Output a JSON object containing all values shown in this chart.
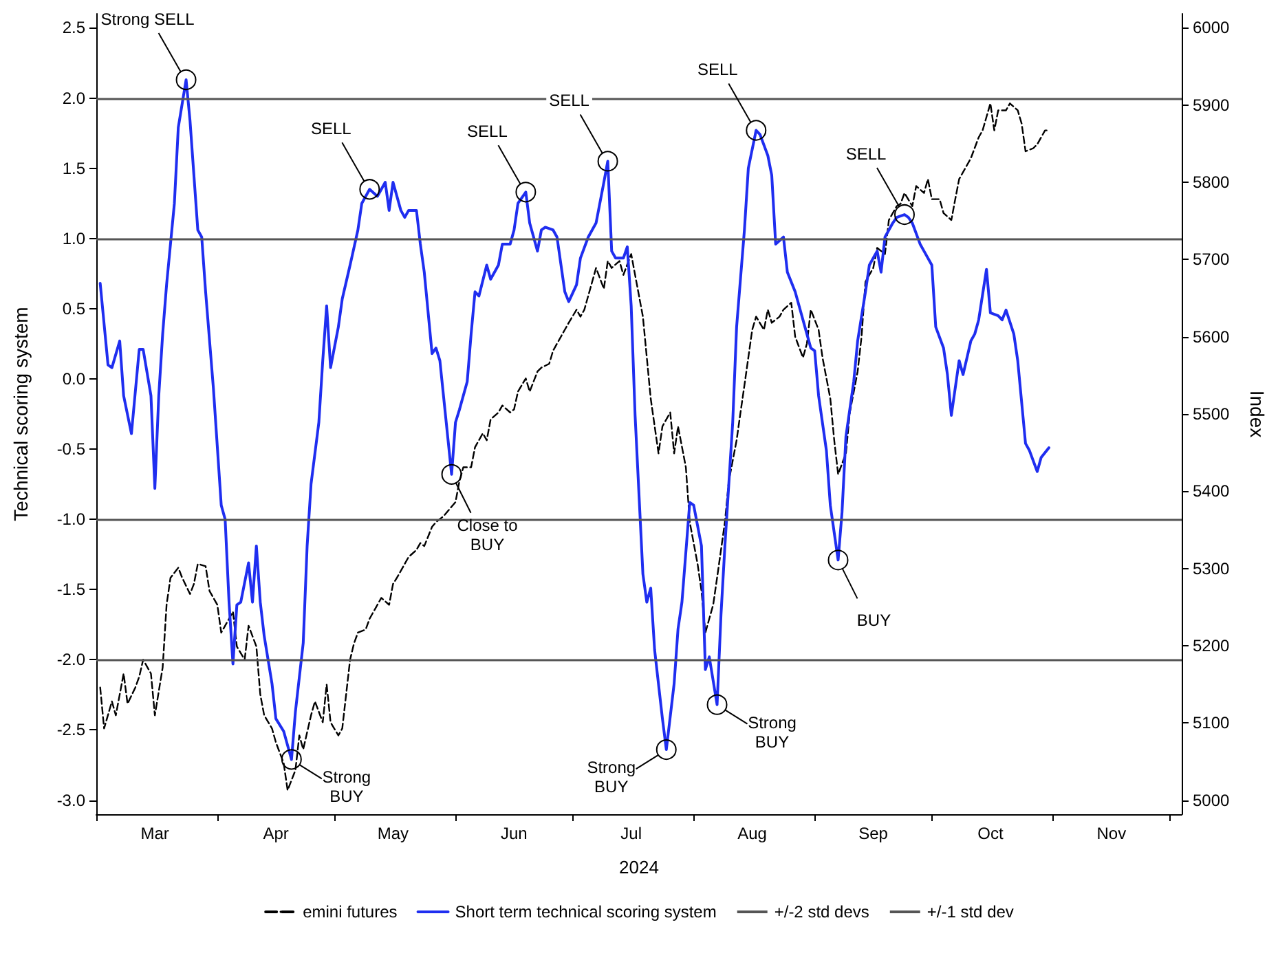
{
  "chart_data": {
    "type": "line",
    "xlabel": "2024",
    "ylabel": "Technical scoring system",
    "y2label": "Index",
    "xlim": [
      "2024-03-01",
      "2024-12-04"
    ],
    "xticks": [
      {
        "value": "2024-03-01",
        "label": null
      },
      {
        "value": "2024-04-01",
        "label": null
      },
      {
        "value": "2024-05-01",
        "label": null
      },
      {
        "value": "2024-06-01",
        "label": null
      },
      {
        "value": "2024-07-01",
        "label": null
      },
      {
        "value": "2024-08-01",
        "label": null
      },
      {
        "value": "2024-09-01",
        "label": null
      },
      {
        "value": "2024-10-01",
        "label": null
      },
      {
        "value": "2024-11-01",
        "label": null
      },
      {
        "value": "2024-12-01",
        "label": null
      },
      {
        "value": "2024-03-16",
        "label": "Mar"
      },
      {
        "value": "2024-04-16",
        "label": "Apr"
      },
      {
        "value": "2024-05-16",
        "label": "May"
      },
      {
        "value": "2024-06-16",
        "label": "Jun"
      },
      {
        "value": "2024-07-16",
        "label": "Jul"
      },
      {
        "value": "2024-08-16",
        "label": "Aug"
      },
      {
        "value": "2024-09-16",
        "label": "Sep"
      },
      {
        "value": "2024-10-16",
        "label": "Oct"
      },
      {
        "value": "2024-11-16",
        "label": "Nov"
      }
    ],
    "ylim": [
      -3.1,
      2.6
    ],
    "yticks": [
      {
        "value": -3,
        "label": "-3.0"
      },
      {
        "value": -2.5,
        "label": "-2.5"
      },
      {
        "value": -2,
        "label": "-2.0"
      },
      {
        "value": -1.5,
        "label": "-1.5"
      },
      {
        "value": -1,
        "label": "-1.0"
      },
      {
        "value": -0.5,
        "label": "-0.5"
      },
      {
        "value": 0,
        "label": "0.0"
      },
      {
        "value": 0.5,
        "label": "0.5"
      },
      {
        "value": 1,
        "label": "1.0"
      },
      {
        "value": 1.5,
        "label": "1.5"
      },
      {
        "value": 2,
        "label": "2.0"
      },
      {
        "value": 2.5,
        "label": "2.5"
      }
    ],
    "y2lim": [
      4982,
      6018
    ],
    "y2ticks": [
      5000,
      5100,
      5200,
      5300,
      5400,
      5500,
      5600,
      5700,
      5800,
      5900,
      6000
    ],
    "legend": "bottom",
    "marker": "none",
    "ref_lines": [
      {
        "axis": "y",
        "value": 2,
        "label": "+/-2 std devs",
        "color": "#555555"
      },
      {
        "axis": "y",
        "value": -2,
        "color": "#555555"
      },
      {
        "axis": "y",
        "value": 1,
        "label": "+/-1 std dev",
        "color": "#555555"
      },
      {
        "axis": "y",
        "value": -1,
        "color": "#555555"
      }
    ],
    "annotations": [
      {
        "text": "Strong SELL",
        "x": "2024-03-24",
        "y": 2.13
      },
      {
        "text": "Strong\nBUY",
        "x": "2024-04-20",
        "y": -2.71
      },
      {
        "text": "SELL",
        "x": "2024-05-10",
        "y": 1.35
      },
      {
        "text": "Close to\nBUY",
        "x": "2024-05-31",
        "y": -0.68
      },
      {
        "text": "SELL",
        "x": "2024-06-19",
        "y": 1.33
      },
      {
        "text": "SELL",
        "x": "2024-07-10",
        "y": 1.55
      },
      {
        "text": "Strong\nBUY",
        "x": "2024-07-25",
        "y": -2.64
      },
      {
        "text": "Strong\nBUY",
        "x": "2024-08-07",
        "y": -2.32
      },
      {
        "text": "SELL",
        "x": "2024-08-17",
        "y": 1.77
      },
      {
        "text": "BUY",
        "x": "2024-09-07",
        "y": -1.29
      },
      {
        "text": "SELL",
        "x": "2024-09-24",
        "y": 1.17
      }
    ],
    "series": [
      {
        "name": "emini futures",
        "color": "#000000",
        "axis": "y2",
        "line_style": "dashed",
        "x": [
          "2024-03-02",
          "2024-03-03",
          "2024-03-05",
          "2024-03-06",
          "2024-03-08",
          "2024-03-09",
          "2024-03-11",
          "2024-03-12",
          "2024-03-13",
          "2024-03-15",
          "2024-03-16",
          "2024-03-18",
          "2024-03-19",
          "2024-03-20",
          "2024-03-22",
          "2024-03-23",
          "2024-03-25",
          "2024-03-26",
          "2024-03-27",
          "2024-03-29",
          "2024-03-30",
          "2024-04-01",
          "2024-04-02",
          "2024-04-04",
          "2024-04-05",
          "2024-04-06",
          "2024-04-08",
          "2024-04-09",
          "2024-04-11",
          "2024-04-12",
          "2024-04-13",
          "2024-04-15",
          "2024-04-16",
          "2024-04-18",
          "2024-04-19",
          "2024-04-21",
          "2024-04-22",
          "2024-04-23",
          "2024-04-25",
          "2024-04-26",
          "2024-04-28",
          "2024-04-29",
          "2024-04-30",
          "2024-05-02",
          "2024-05-03",
          "2024-05-05",
          "2024-05-06",
          "2024-05-07",
          "2024-05-09",
          "2024-05-10",
          "2024-05-12",
          "2024-05-13",
          "2024-05-15",
          "2024-05-16",
          "2024-05-17",
          "2024-05-19",
          "2024-05-20",
          "2024-05-22",
          "2024-05-23",
          "2024-05-24",
          "2024-05-26",
          "2024-05-27",
          "2024-05-29",
          "2024-05-30",
          "2024-06-01",
          "2024-06-02",
          "2024-06-03",
          "2024-06-05",
          "2024-06-06",
          "2024-06-08",
          "2024-06-09",
          "2024-06-10",
          "2024-06-12",
          "2024-06-13",
          "2024-06-15",
          "2024-06-16",
          "2024-06-17",
          "2024-06-19",
          "2024-06-20",
          "2024-06-22",
          "2024-06-23",
          "2024-06-25",
          "2024-06-26",
          "2024-06-27",
          "2024-06-29",
          "2024-06-30",
          "2024-07-02",
          "2024-07-03",
          "2024-07-04",
          "2024-07-06",
          "2024-07-07",
          "2024-07-09",
          "2024-07-10",
          "2024-07-11",
          "2024-07-13",
          "2024-07-14",
          "2024-07-16",
          "2024-07-17",
          "2024-07-19",
          "2024-07-20",
          "2024-07-21",
          "2024-07-23",
          "2024-07-24",
          "2024-07-26",
          "2024-07-27",
          "2024-07-28",
          "2024-07-30",
          "2024-07-31",
          "2024-08-02",
          "2024-08-03",
          "2024-08-04",
          "2024-08-06",
          "2024-08-07",
          "2024-08-09",
          "2024-08-10",
          "2024-08-12",
          "2024-08-13",
          "2024-08-14",
          "2024-08-16",
          "2024-08-17",
          "2024-08-19",
          "2024-08-20",
          "2024-08-21",
          "2024-08-23",
          "2024-08-24",
          "2024-08-26",
          "2024-08-27",
          "2024-08-29",
          "2024-08-30",
          "2024-08-31",
          "2024-09-02",
          "2024-09-03",
          "2024-09-05",
          "2024-09-06",
          "2024-09-07",
          "2024-09-09",
          "2024-09-10",
          "2024-09-12",
          "2024-09-13",
          "2024-09-14",
          "2024-09-16",
          "2024-09-17",
          "2024-09-19",
          "2024-09-20",
          "2024-09-22",
          "2024-09-23",
          "2024-09-24",
          "2024-09-26",
          "2024-09-27",
          "2024-09-29",
          "2024-09-30",
          "2024-10-01",
          "2024-10-03",
          "2024-10-04",
          "2024-10-06",
          "2024-10-07",
          "2024-10-08",
          "2024-10-10",
          "2024-10-11",
          "2024-10-13",
          "2024-10-14",
          "2024-10-16",
          "2024-10-17",
          "2024-10-18",
          "2024-10-20",
          "2024-10-21",
          "2024-10-23",
          "2024-10-24",
          "2024-10-25",
          "2024-10-27",
          "2024-10-28",
          "2024-10-30",
          "2024-10-31"
        ],
        "values": [
          5146,
          5093,
          5128,
          5110,
          5164,
          5125,
          5146,
          5160,
          5182,
          5164,
          5110,
          5172,
          5253,
          5288,
          5301,
          5288,
          5267,
          5280,
          5306,
          5303,
          5271,
          5253,
          5217,
          5235,
          5244,
          5199,
          5182,
          5226,
          5199,
          5137,
          5110,
          5093,
          5075,
          5048,
          5013,
          5039,
          5084,
          5066,
          5110,
          5128,
          5101,
          5150,
          5101,
          5084,
          5093,
          5182,
          5203,
          5217,
          5221,
          5235,
          5253,
          5262,
          5253,
          5280,
          5288,
          5306,
          5315,
          5324,
          5333,
          5329,
          5354,
          5360,
          5368,
          5374,
          5386,
          5413,
          5431,
          5431,
          5457,
          5475,
          5466,
          5493,
          5502,
          5511,
          5502,
          5506,
          5529,
          5546,
          5529,
          5555,
          5560,
          5565,
          5582,
          5591,
          5609,
          5618,
          5635,
          5626,
          5635,
          5671,
          5689,
          5662,
          5698,
          5689,
          5698,
          5680,
          5707,
          5680,
          5626,
          5573,
          5520,
          5449,
          5484,
          5502,
          5449,
          5484,
          5431,
          5360,
          5306,
          5271,
          5217,
          5253,
          5288,
          5360,
          5413,
          5466,
          5502,
          5537,
          5609,
          5626,
          5609,
          5635,
          5618,
          5626,
          5635,
          5644,
          5600,
          5573,
          5591,
          5635,
          5609,
          5573,
          5520,
          5466,
          5422,
          5449,
          5502,
          5555,
          5600,
          5671,
          5689,
          5715,
          5707,
          5751,
          5769,
          5772,
          5786,
          5769,
          5795,
          5786,
          5804,
          5778,
          5778,
          5760,
          5751,
          5778,
          5804,
          5822,
          5831,
          5858,
          5867,
          5902,
          5867,
          5893,
          5893,
          5902,
          5893,
          5876,
          5840,
          5844,
          5849,
          5867,
          5867
        ]
      },
      {
        "name": "Short term technical scoring system",
        "color": "#1f2ef0",
        "x": [
          "2024-03-02",
          "2024-03-04",
          "2024-03-05",
          "2024-03-07",
          "2024-03-08",
          "2024-03-10",
          "2024-03-12",
          "2024-03-13",
          "2024-03-15",
          "2024-03-16",
          "2024-03-17",
          "2024-03-18",
          "2024-03-19",
          "2024-03-21",
          "2024-03-22",
          "2024-03-24",
          "2024-03-25",
          "2024-03-27",
          "2024-03-28",
          "2024-03-29",
          "2024-03-31",
          "2024-04-02",
          "2024-04-03",
          "2024-04-04",
          "2024-04-05",
          "2024-04-06",
          "2024-04-07",
          "2024-04-09",
          "2024-04-10",
          "2024-04-11",
          "2024-04-12",
          "2024-04-13",
          "2024-04-15",
          "2024-04-16",
          "2024-04-18",
          "2024-04-19",
          "2024-04-20",
          "2024-04-21",
          "2024-04-23",
          "2024-04-24",
          "2024-04-25",
          "2024-04-27",
          "2024-04-28",
          "2024-04-29",
          "2024-04-30",
          "2024-05-02",
          "2024-05-03",
          "2024-05-05",
          "2024-05-07",
          "2024-05-08",
          "2024-05-10",
          "2024-05-12",
          "2024-05-14",
          "2024-05-15",
          "2024-05-16",
          "2024-05-18",
          "2024-05-19",
          "2024-05-20",
          "2024-05-22",
          "2024-05-23",
          "2024-05-24",
          "2024-05-26",
          "2024-05-27",
          "2024-05-28",
          "2024-05-30",
          "2024-05-31",
          "2024-06-01",
          "2024-06-02",
          "2024-06-04",
          "2024-06-05",
          "2024-06-06",
          "2024-06-07",
          "2024-06-09",
          "2024-06-10",
          "2024-06-12",
          "2024-06-13",
          "2024-06-15",
          "2024-06-16",
          "2024-06-17",
          "2024-06-19",
          "2024-06-20",
          "2024-06-22",
          "2024-06-23",
          "2024-06-24",
          "2024-06-26",
          "2024-06-27",
          "2024-06-29",
          "2024-06-30",
          "2024-07-02",
          "2024-07-03",
          "2024-07-05",
          "2024-07-07",
          "2024-07-09",
          "2024-07-10",
          "2024-07-11",
          "2024-07-12",
          "2024-07-14",
          "2024-07-15",
          "2024-07-16",
          "2024-07-17",
          "2024-07-19",
          "2024-07-20",
          "2024-07-21",
          "2024-07-22",
          "2024-07-24",
          "2024-07-25",
          "2024-07-27",
          "2024-07-28",
          "2024-07-29",
          "2024-07-31",
          "2024-08-01",
          "2024-08-03",
          "2024-08-04",
          "2024-08-05",
          "2024-08-07",
          "2024-08-08",
          "2024-08-09",
          "2024-08-11",
          "2024-08-12",
          "2024-08-14",
          "2024-08-15",
          "2024-08-17",
          "2024-08-18",
          "2024-08-20",
          "2024-08-21",
          "2024-08-22",
          "2024-08-24",
          "2024-08-25",
          "2024-08-27",
          "2024-08-28",
          "2024-08-30",
          "2024-08-31",
          "2024-09-01",
          "2024-09-02",
          "2024-09-04",
          "2024-09-05",
          "2024-09-07",
          "2024-09-08",
          "2024-09-09",
          "2024-09-11",
          "2024-09-12",
          "2024-09-14",
          "2024-09-15",
          "2024-09-17",
          "2024-09-18",
          "2024-09-19",
          "2024-09-21",
          "2024-09-22",
          "2024-09-24",
          "2024-09-25",
          "2024-09-26",
          "2024-09-28",
          "2024-09-29",
          "2024-10-01",
          "2024-10-02",
          "2024-10-04",
          "2024-10-05",
          "2024-10-06",
          "2024-10-08",
          "2024-10-09",
          "2024-10-11",
          "2024-10-12",
          "2024-10-13",
          "2024-10-15",
          "2024-10-16",
          "2024-10-18",
          "2024-10-19",
          "2024-10-20",
          "2024-10-22",
          "2024-10-23",
          "2024-10-25",
          "2024-10-26",
          "2024-10-28",
          "2024-10-29",
          "2024-10-31"
        ],
        "values": [
          0.68,
          0.1,
          0.08,
          0.27,
          -0.12,
          -0.39,
          0.21,
          0.21,
          -0.12,
          -0.78,
          -0.12,
          0.32,
          0.67,
          1.25,
          1.79,
          2.13,
          1.84,
          1.06,
          1.01,
          0.62,
          -0.07,
          -0.9,
          -1.0,
          -1.59,
          -2.03,
          -1.61,
          -1.59,
          -1.31,
          -1.59,
          -1.19,
          -1.59,
          -1.83,
          -2.17,
          -2.42,
          -2.51,
          -2.61,
          -2.71,
          -2.37,
          -1.88,
          -1.19,
          -0.75,
          -0.31,
          0.13,
          0.52,
          0.08,
          0.37,
          0.57,
          0.81,
          1.06,
          1.25,
          1.35,
          1.3,
          1.4,
          1.2,
          1.4,
          1.2,
          1.15,
          1.2,
          1.2,
          0.96,
          0.76,
          0.18,
          0.22,
          0.13,
          -0.41,
          -0.68,
          -0.31,
          -0.22,
          -0.02,
          0.32,
          0.62,
          0.59,
          0.81,
          0.71,
          0.81,
          0.96,
          0.96,
          1.06,
          1.25,
          1.33,
          1.11,
          0.91,
          1.06,
          1.08,
          1.06,
          1.01,
          0.62,
          0.55,
          0.67,
          0.86,
          1.01,
          1.11,
          1.4,
          1.55,
          0.91,
          0.86,
          0.86,
          0.94,
          0.52,
          -0.26,
          -1.39,
          -1.59,
          -1.49,
          -1.93,
          -2.42,
          -2.64,
          -2.17,
          -1.78,
          -1.59,
          -0.88,
          -0.9,
          -1.19,
          -2.07,
          -1.98,
          -2.32,
          -1.68,
          -1.19,
          -0.31,
          0.37,
          1.06,
          1.5,
          1.77,
          1.74,
          1.59,
          1.45,
          0.96,
          1.01,
          0.76,
          0.62,
          0.52,
          0.32,
          0.22,
          0.2,
          -0.12,
          -0.51,
          -0.9,
          -1.29,
          -0.95,
          -0.41,
          -0.02,
          0.27,
          0.62,
          0.81,
          0.91,
          0.76,
          1.01,
          1.11,
          1.15,
          1.17,
          1.15,
          1.11,
          0.96,
          0.91,
          0.81,
          0.37,
          0.22,
          0.03,
          -0.26,
          0.13,
          0.03,
          0.27,
          0.32,
          0.42,
          0.78,
          0.47,
          0.45,
          0.42,
          0.49,
          0.32,
          0.13,
          -0.46,
          -0.51,
          -0.66,
          -0.56,
          -0.49
        ]
      }
    ]
  }
}
